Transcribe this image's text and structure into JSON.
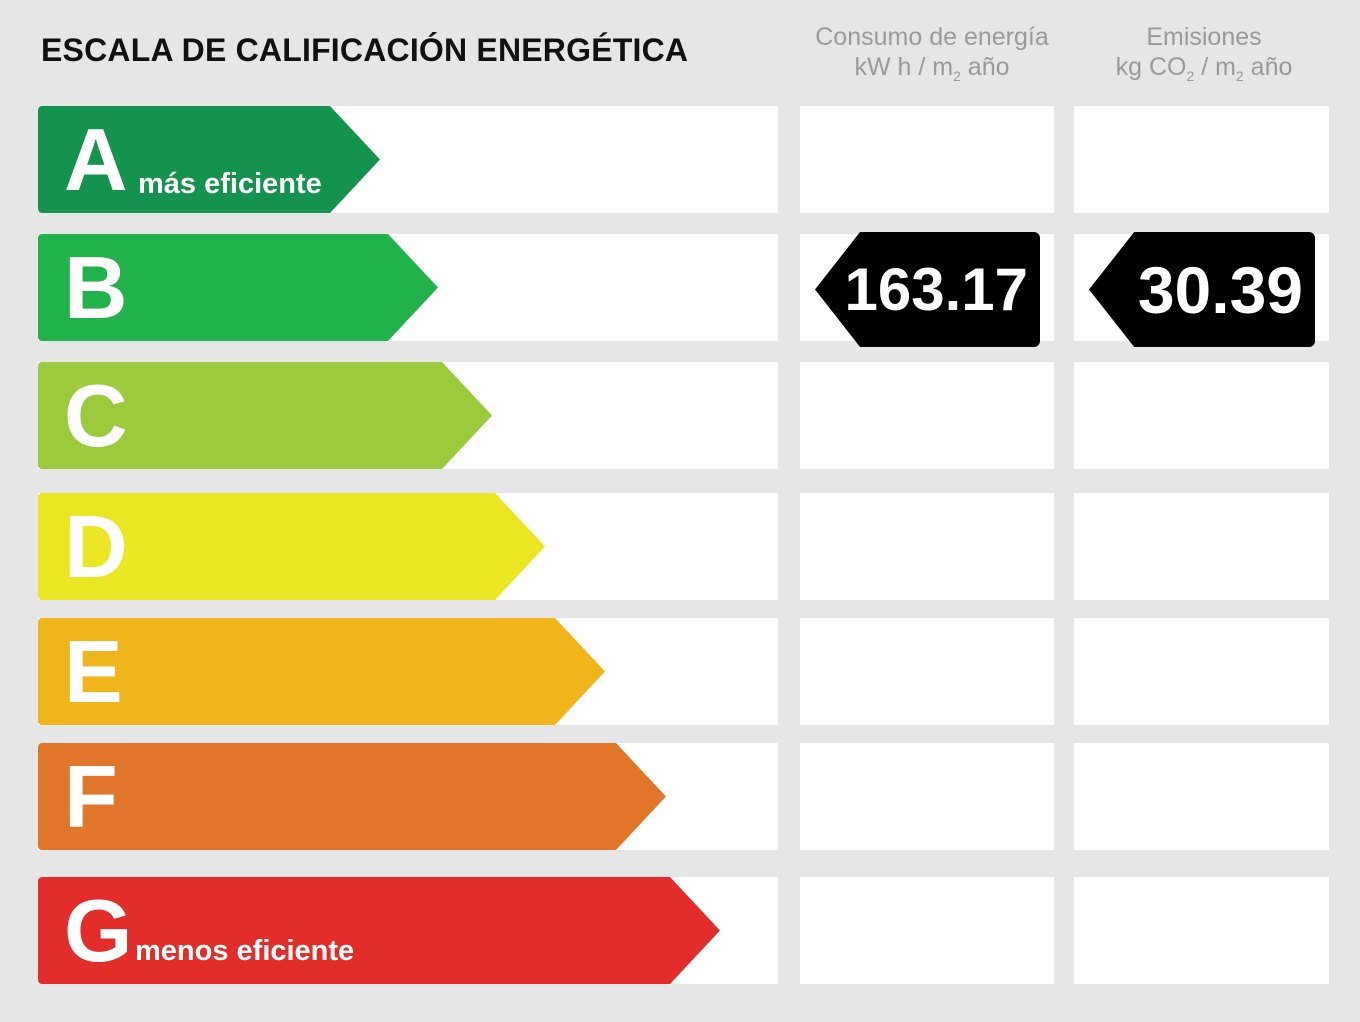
{
  "title": "ESCALA DE CALIFICACIÓN ENERGÉTICA",
  "columns": {
    "energy": {
      "line1": "Consumo de energía",
      "line2_a": "kW h / m",
      "line2_sub": "2",
      "line2_b": " año"
    },
    "emissions": {
      "line1": "Emisiones",
      "line2_a": "kg CO",
      "line2_sub1": "2",
      "line2_mid": " / m",
      "line2_sub2": "2",
      "line2_b": " año"
    }
  },
  "ratings": [
    {
      "letter": "A",
      "note": "más eficiente",
      "color": "#13934e"
    },
    {
      "letter": "B",
      "note": "",
      "color": "#22b24c"
    },
    {
      "letter": "C",
      "note": "",
      "color": "#9bca3c"
    },
    {
      "letter": "D",
      "note": "",
      "color": "#ebe623"
    },
    {
      "letter": "E",
      "note": "",
      "color": "#f0b51b"
    },
    {
      "letter": "F",
      "note": "",
      "color": "#e1752a"
    },
    {
      "letter": "G",
      "note": "menos eficiente",
      "color": "#e22d2b"
    }
  ],
  "result": {
    "rating": "B",
    "energy_value": "163.17",
    "emissions_value": "30.39"
  }
}
